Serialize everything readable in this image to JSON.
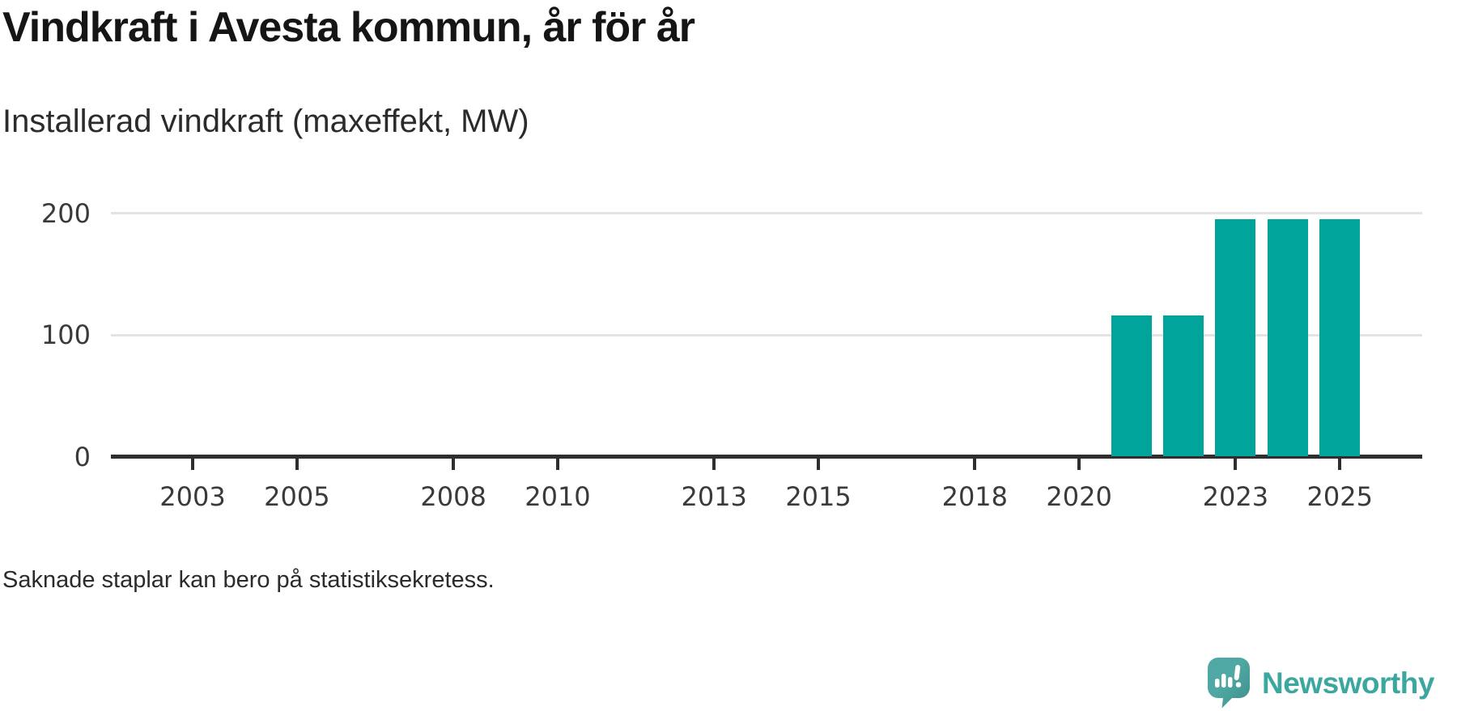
{
  "header": {
    "title": "Vindkraft i Avesta kommun, år för år",
    "subtitle": "Installerad vindkraft (maxeffekt, MW)"
  },
  "chart_data": {
    "type": "bar",
    "title": "Vindkraft i Avesta kommun, år för år",
    "subtitle": "Installerad vindkraft (maxeffekt, MW)",
    "ylabel": "Installerad vindkraft (maxeffekt, MW)",
    "xlabel": "",
    "unit": "MW",
    "x": [
      2021,
      2022,
      2023,
      2024,
      2025
    ],
    "values": [
      116,
      116,
      195,
      195,
      195
    ],
    "xticks": [
      "2003",
      "2005",
      "2008",
      "2010",
      "2013",
      "2015",
      "2018",
      "2020",
      "2023",
      "2025"
    ],
    "yticks": [
      "0",
      "100",
      "200"
    ],
    "xlim": [
      2001.4,
      2026.6
    ],
    "ylim": [
      0,
      200
    ],
    "grid": "horizontal-only",
    "legend": "none",
    "bar_color": "#00a49b",
    "axis_color": "#2e2e2e",
    "grid_color": "#e3e3e3",
    "tick_label_color": "#3a3a3a"
  },
  "footer": {
    "note": "Saknade staplar kan bero på statistiksekretess."
  },
  "logo": {
    "text": "Newsworthy",
    "text_color": "#3ba79f",
    "bubble_color": "#4fa8a3",
    "bubble_shade_color": "#3e8e8b"
  }
}
